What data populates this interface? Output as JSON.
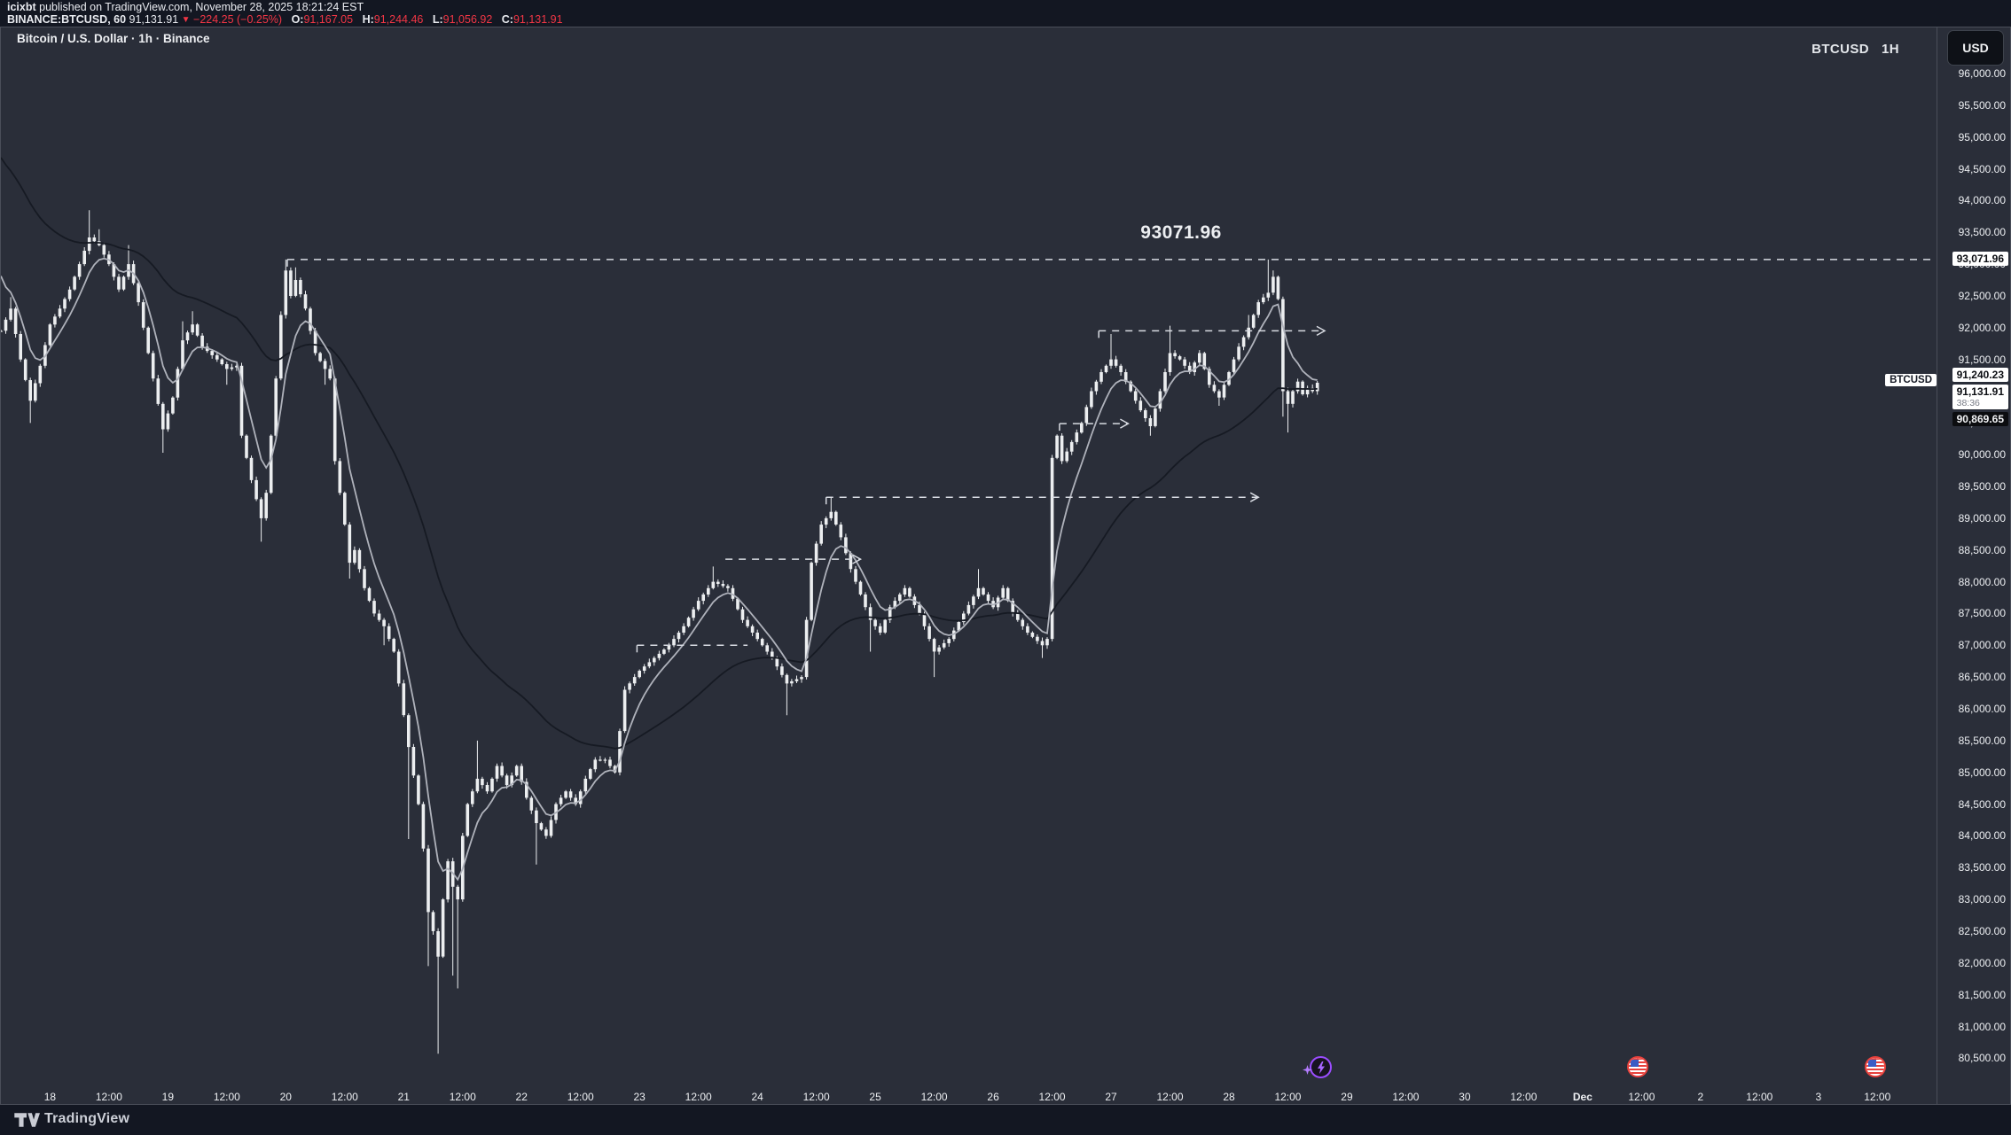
{
  "header": {
    "byline": {
      "user": "icixbt",
      "rest": " published on TradingView.com, November 28, 2025 18:21:24 EST"
    },
    "quote": {
      "symbol": "BINANCE:BTCUSD, 60",
      "last": "91,131.91",
      "direction_icon": "▼",
      "change": "−224.25 (−0.25%)",
      "ohlc": [
        {
          "label": "O:",
          "value": "91,167.05"
        },
        {
          "label": "H:",
          "value": "91,244.46"
        },
        {
          "label": "L:",
          "value": "91,056.92"
        },
        {
          "label": "C:",
          "value": "91,131.91"
        }
      ]
    }
  },
  "chart": {
    "title": "Bitcoin / U.S. Dollar · 1h · Binance",
    "watermark": {
      "symbol": "BTCUSD",
      "interval": "1H"
    },
    "annotation": "93071.96"
  },
  "price_axis": {
    "currency_button": "USD",
    "labels": {
      "line_level": "93,071.96",
      "ma_fast": "91,240.23",
      "symbol_tag": "BTCUSD",
      "last_price": "91,131.91",
      "countdown": "38:36",
      "ma_slow": "90,869.65"
    }
  },
  "time_axis": {
    "ticks": [
      [
        10,
        "18"
      ],
      [
        22,
        "12:00"
      ],
      [
        34,
        "19"
      ],
      [
        46,
        "12:00"
      ],
      [
        58,
        "20"
      ],
      [
        70,
        "12:00"
      ],
      [
        82,
        "21"
      ],
      [
        94,
        "12:00"
      ],
      [
        106,
        "22"
      ],
      [
        118,
        "12:00"
      ],
      [
        130,
        "23"
      ],
      [
        142,
        "12:00"
      ],
      [
        154,
        "24"
      ],
      [
        166,
        "12:00"
      ],
      [
        178,
        "25"
      ],
      [
        190,
        "12:00"
      ],
      [
        202,
        "26"
      ],
      [
        214,
        "12:00"
      ],
      [
        226,
        "27"
      ],
      [
        238,
        "12:00"
      ],
      [
        250,
        "28"
      ],
      [
        262,
        "12:00"
      ],
      [
        274,
        "29"
      ],
      [
        286,
        "12:00"
      ],
      [
        298,
        "30"
      ],
      [
        310,
        "12:00"
      ],
      [
        322,
        "Dec"
      ],
      [
        334,
        "12:00"
      ],
      [
        346,
        "2"
      ],
      [
        358,
        "12:00"
      ],
      [
        370,
        "3"
      ],
      [
        382,
        "12:00"
      ]
    ]
  },
  "events": [
    {
      "t": 268.6,
      "kind": "flash"
    },
    {
      "t": 333.2,
      "kind": "us-flag"
    },
    {
      "t": 381.6,
      "kind": "us-flag"
    }
  ],
  "footer": {
    "brand": "TradingView"
  },
  "colors": {
    "bg_outer": "#131722",
    "bg_chart": "#2A2E39",
    "border": "#4A4E59",
    "axis_text": "#EDEFF2",
    "red": "#F23645",
    "candle": "#ECEEF0",
    "ma_fast": "#AFB2BB",
    "ma_slow": "#161A23",
    "dashed": "#D8DBE2",
    "label_dark_bg": "#0C0D10",
    "purple": "#9B4DFF",
    "flag_red": "#E8413C",
    "flag_blue": "#3A5CC5"
  },
  "chart_data": {
    "type": "candlestick",
    "symbol": "BTCUSD",
    "exchange": "Binance",
    "interval": "1h",
    "title": "Bitcoin / U.S. Dollar · 1h · Binance",
    "y_axis": {
      "min": 80500,
      "max": 96000,
      "step": 500
    },
    "x_axis_days": [
      "18",
      "19",
      "20",
      "21",
      "22",
      "23",
      "24",
      "25",
      "26",
      "27",
      "28",
      "29",
      "30",
      "Dec",
      "2",
      "3"
    ],
    "hours_total": 268,
    "last": {
      "open": 91167.05,
      "high": 91244.46,
      "low": 91056.92,
      "close": 91131.91,
      "change": -224.25,
      "change_pct": -0.25,
      "countdown": "38:36"
    },
    "ma_fast_value": 91240.23,
    "ma_slow_value": 90869.65,
    "swing_high": 93071.96,
    "crash_low": 80570,
    "ma": {
      "fast": {
        "period": 7,
        "seed": 93100
      },
      "slow": {
        "period": 45,
        "seed": 94800
      }
    },
    "anchors": [
      [
        0,
        91950
      ],
      [
        2,
        92300,
        92480
      ],
      [
        4,
        91500
      ],
      [
        6,
        90850,
        null,
        90500
      ],
      [
        8,
        91400
      ],
      [
        10,
        92050
      ],
      [
        12,
        92300
      ],
      [
        14,
        92600
      ],
      [
        16,
        93000
      ],
      [
        18,
        93420,
        93850
      ],
      [
        20,
        93300,
        93550
      ],
      [
        22,
        93000
      ],
      [
        24,
        92600
      ],
      [
        26,
        93000,
        93300
      ],
      [
        28,
        92400
      ],
      [
        30,
        91600
      ],
      [
        33,
        90400,
        null,
        90030
      ],
      [
        35,
        90900
      ],
      [
        37,
        91800,
        92100
      ],
      [
        39,
        92050,
        92260
      ],
      [
        41,
        91700
      ],
      [
        44,
        91500
      ],
      [
        46,
        91350,
        null,
        91100
      ],
      [
        48,
        91400
      ],
      [
        49,
        90300
      ],
      [
        51,
        89600
      ],
      [
        53,
        89000,
        null,
        88630
      ],
      [
        54,
        89400
      ],
      [
        55,
        90300
      ],
      [
        56,
        91200
      ],
      [
        57,
        92200
      ],
      [
        58,
        92900,
        93071.96
      ],
      [
        59,
        92500
      ],
      [
        60,
        92750,
        92950
      ],
      [
        62,
        92300
      ],
      [
        64,
        91600
      ],
      [
        66,
        91350,
        null,
        91100
      ],
      [
        67,
        91200
      ],
      [
        68,
        89900
      ],
      [
        70,
        88900
      ],
      [
        71,
        88300,
        null,
        88050
      ],
      [
        72,
        88500
      ],
      [
        74,
        87900
      ],
      [
        76,
        87500
      ],
      [
        78,
        87300,
        null,
        87000
      ],
      [
        80,
        86900
      ],
      [
        81,
        86400
      ],
      [
        82,
        85900
      ],
      [
        83,
        85400,
        null,
        83950
      ],
      [
        85,
        84500
      ],
      [
        86,
        83800
      ],
      [
        87,
        82800,
        null,
        81950
      ],
      [
        88,
        82500
      ],
      [
        89,
        82100,
        null,
        80570
      ],
      [
        90,
        83000
      ],
      [
        91,
        83600
      ],
      [
        92,
        83200,
        null,
        81800
      ],
      [
        93,
        83000,
        null,
        81600
      ],
      [
        94,
        84000
      ],
      [
        95,
        84500
      ],
      [
        97,
        84900,
        85500
      ],
      [
        99,
        84700
      ],
      [
        101,
        85100
      ],
      [
        103,
        84800
      ],
      [
        105,
        85100
      ],
      [
        107,
        84600
      ],
      [
        109,
        84200,
        null,
        83550
      ],
      [
        111,
        84000
      ],
      [
        113,
        84500
      ],
      [
        115,
        84700
      ],
      [
        117,
        84500
      ],
      [
        119,
        84900
      ],
      [
        121,
        85200
      ],
      [
        123,
        85200
      ],
      [
        125,
        85000
      ],
      [
        127,
        86300
      ],
      [
        130,
        86600
      ],
      [
        133,
        86800
      ],
      [
        136,
        87000
      ],
      [
        139,
        87300
      ],
      [
        142,
        87700
      ],
      [
        145,
        88000,
        88240
      ],
      [
        148,
        87900
      ],
      [
        151,
        87400
      ],
      [
        154,
        87100
      ],
      [
        157,
        86800
      ],
      [
        160,
        86400,
        null,
        85900
      ],
      [
        163,
        86500
      ],
      [
        165,
        88300
      ],
      [
        167,
        88900
      ],
      [
        169,
        89100,
        89330
      ],
      [
        171,
        88700
      ],
      [
        173,
        88200
      ],
      [
        175,
        87800
      ],
      [
        177,
        87400,
        null,
        86900
      ],
      [
        179,
        87200
      ],
      [
        181,
        87600
      ],
      [
        184,
        87900
      ],
      [
        187,
        87500
      ],
      [
        190,
        86900,
        null,
        86500
      ],
      [
        193,
        87100
      ],
      [
        196,
        87500
      ],
      [
        199,
        87900,
        88200
      ],
      [
        202,
        87600
      ],
      [
        204,
        87900
      ],
      [
        206,
        87500
      ],
      [
        209,
        87200
      ],
      [
        212,
        87000,
        null,
        86800
      ],
      [
        213,
        87100
      ],
      [
        214,
        89950
      ],
      [
        215,
        90300
      ],
      [
        216,
        89900
      ],
      [
        218,
        90200
      ],
      [
        220,
        90500
      ],
      [
        222,
        91000
      ],
      [
        224,
        91300
      ],
      [
        226,
        91500,
        91900
      ],
      [
        228,
        91300
      ],
      [
        230,
        91000
      ],
      [
        232,
        90700
      ],
      [
        234,
        90450,
        null,
        90300
      ],
      [
        236,
        91000
      ],
      [
        238,
        91600,
        92030
      ],
      [
        240,
        91500
      ],
      [
        242,
        91300
      ],
      [
        244,
        91600
      ],
      [
        246,
        91100
      ],
      [
        248,
        90900,
        null,
        90770
      ],
      [
        250,
        91300
      ],
      [
        252,
        91700
      ],
      [
        254,
        92000,
        92200
      ],
      [
        256,
        92400
      ],
      [
        258,
        92550,
        93071.96
      ],
      [
        259,
        92800,
        92900
      ],
      [
        260,
        92450
      ],
      [
        261,
        91000,
        null,
        90600
      ],
      [
        262,
        90800,
        null,
        90350
      ],
      [
        263,
        91000
      ],
      [
        264,
        91150
      ],
      [
        265,
        90950
      ],
      [
        266,
        91050
      ],
      [
        267,
        91000
      ],
      [
        268,
        91131.91
      ]
    ],
    "range_lines": [
      {
        "price": 93071.96,
        "t1": 58.3,
        "t2": "edge",
        "bracket": true,
        "arrow": false
      },
      {
        "price": 91950,
        "t1": 223.5,
        "t2": 269.5,
        "bracket": true,
        "arrow": true
      },
      {
        "price": 90490,
        "t1": 215.5,
        "t2": 229.5,
        "bracket": true,
        "arrow": true
      },
      {
        "price": 89330,
        "t1": 168,
        "t2": 256,
        "bracket": true,
        "arrow": true
      },
      {
        "price": 88355,
        "t1": 147.5,
        "t2": 175,
        "bracket": false,
        "arrow": true
      },
      {
        "price": 87000,
        "t1": 129.5,
        "t2": 152,
        "bracket": true,
        "arrow": false
      }
    ],
    "annotation": {
      "text": "93071.96",
      "t": 232,
      "price_top": 93650
    }
  }
}
